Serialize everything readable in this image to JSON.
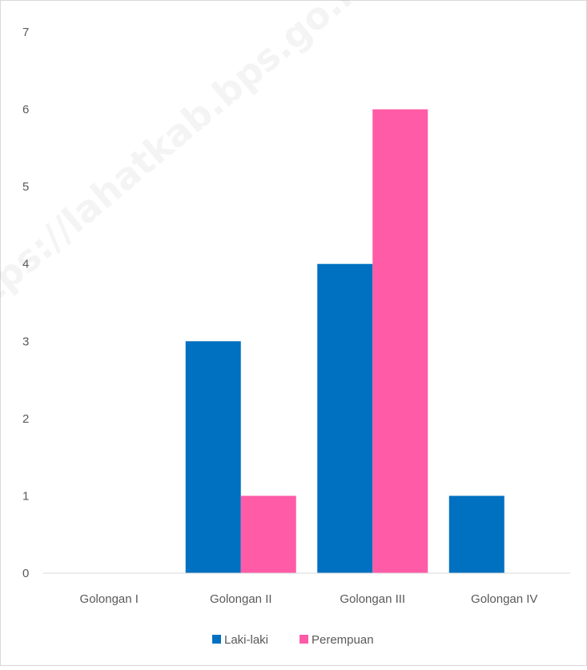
{
  "chart_data": {
    "type": "bar",
    "categories": [
      "Golongan I",
      "Golongan II",
      "Golongan III",
      "Golongan IV"
    ],
    "series": [
      {
        "name": "Laki-laki",
        "values": [
          0,
          3,
          4,
          1
        ],
        "color": "#0070C0"
      },
      {
        "name": "Perempuan",
        "values": [
          0,
          1,
          6,
          0
        ],
        "color": "#FF5BA7"
      }
    ],
    "ylim": [
      0,
      7
    ],
    "yticks": [
      "0",
      "1",
      "2",
      "3",
      "4",
      "5",
      "6",
      "7"
    ],
    "grid": false,
    "legend_position": "bottom"
  },
  "watermark": "https://lahatkab.bps.go.id"
}
